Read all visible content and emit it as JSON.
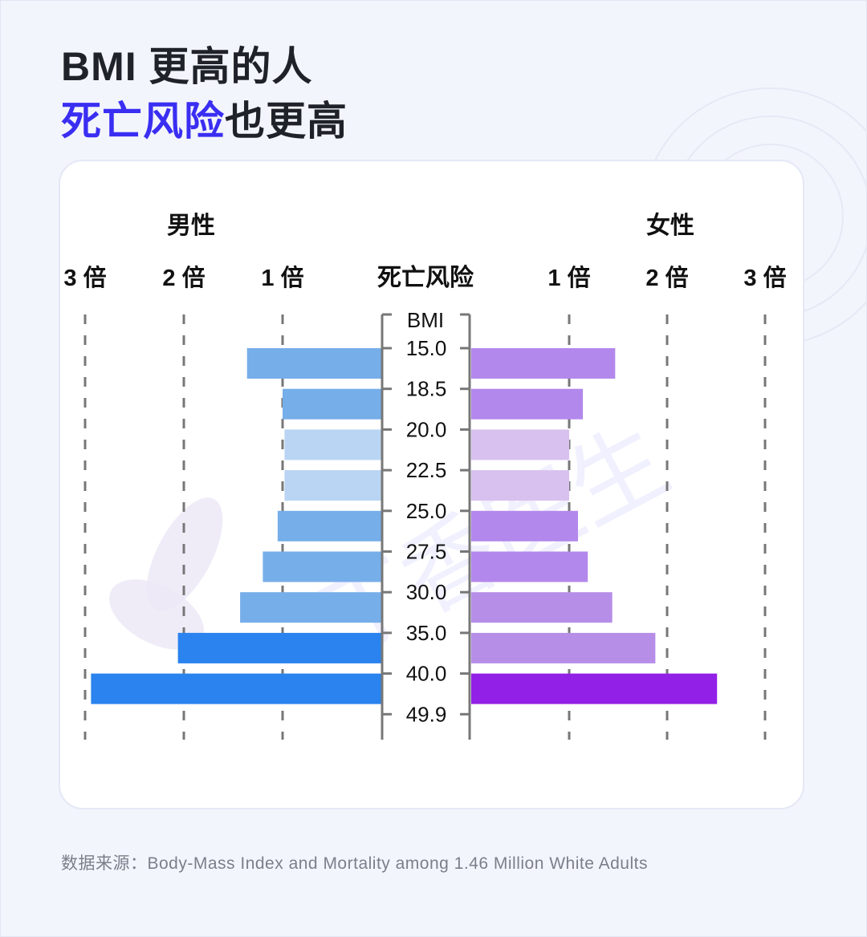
{
  "title": {
    "line1": "BMI 更高的人",
    "line2_highlight": "死亡风险",
    "line2_rest": "也更高"
  },
  "source": "数据来源：Body-Mass Index and Mortality among 1.46 Million White Adults",
  "watermark": "丁香医生",
  "colors": {
    "title": "#1f2229",
    "highlight": "#3a2ef2",
    "male_bar": "#76aee9",
    "male_bar_light": "#b9d5f3",
    "male_bar_strong": "#2a83ee",
    "female_bar": "#b388ec",
    "female_bar_light": "#d8c1ef",
    "female_bar_mid": "#b68ee8",
    "female_bar_strong": "#9220e6",
    "axis": "#777777",
    "gridline": "#777777"
  },
  "chart_data": {
    "type": "bar",
    "orientation": "horizontal-butterfly",
    "center_label": "死亡风险",
    "axis_title": "BMI",
    "left_group": "男性",
    "right_group": "女性",
    "left_ticks": [
      "3 倍",
      "2 倍",
      "1 倍"
    ],
    "right_ticks": [
      "1 倍",
      "2 倍",
      "3 倍"
    ],
    "bmi_boundaries": [
      "15.0",
      "18.5",
      "20.0",
      "22.5",
      "25.0",
      "27.5",
      "30.0",
      "35.0",
      "40.0",
      "49.9"
    ],
    "xlim": [
      0,
      3
    ],
    "grid": "dashed vertical lines at 1, 2 and 3",
    "series": [
      {
        "name": "男性",
        "values": [
          1.36,
          1.0,
          0.98,
          0.98,
          1.05,
          1.2,
          1.43,
          2.06,
          2.94
        ]
      },
      {
        "name": "女性",
        "values": [
          1.47,
          1.14,
          1.0,
          1.0,
          1.09,
          1.19,
          1.44,
          1.88,
          2.51
        ]
      }
    ]
  }
}
